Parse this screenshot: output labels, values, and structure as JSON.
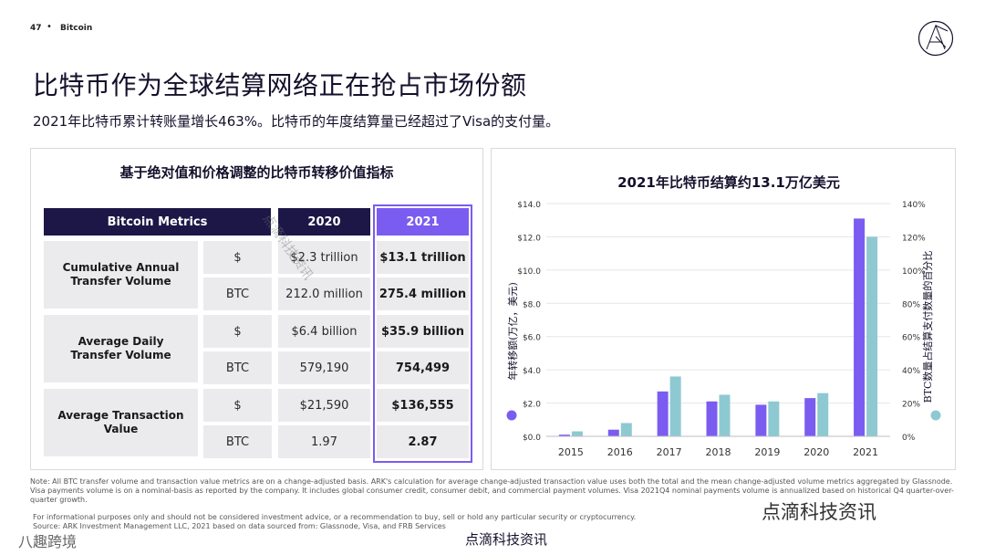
{
  "header": {
    "page_number": "47",
    "separator": "•",
    "section": "Bitcoin"
  },
  "title": "比特币作为全球结算网络正在抢占市场份额",
  "subtitle": "2021年比特币累计转账量增长463%。比特币的年度结算量已经超过了Visa的支付量。",
  "table": {
    "title": "基于绝对值和价格调整的比特币转移价值指标",
    "headers": [
      "Bitcoin Metrics",
      "2020",
      "2021"
    ],
    "groups": [
      {
        "metric": "Cumulative Annual Transfer Volume",
        "rows": [
          {
            "unit": "$",
            "v2020": "$2.3 trillion",
            "v2021": "$13.1 trillion"
          },
          {
            "unit": "BTC",
            "v2020": "212.0 million",
            "v2021": "275.4 million"
          }
        ]
      },
      {
        "metric": "Average Daily Transfer Volume",
        "rows": [
          {
            "unit": "$",
            "v2020": "$6.4 billion",
            "v2021": "$35.9 billion"
          },
          {
            "unit": "BTC",
            "v2020": "579,190",
            "v2021": "754,499"
          }
        ]
      },
      {
        "metric": "Average Transaction Value",
        "rows": [
          {
            "unit": "$",
            "v2020": "$21,590",
            "v2021": "$136,555"
          },
          {
            "unit": "BTC",
            "v2020": "1.97",
            "v2021": "2.87"
          }
        ]
      }
    ],
    "colors": {
      "header_dark": "#1c1747",
      "header_accent": "#7b5cf0",
      "cell_bg": "#ebebee"
    }
  },
  "chart_data": {
    "type": "bar",
    "title": "2021年比特币结算约13.1万亿美元",
    "categories": [
      "2015",
      "2016",
      "2017",
      "2018",
      "2019",
      "2020",
      "2021"
    ],
    "series": [
      {
        "axis": "left",
        "color": "#7b5cf0",
        "values": [
          0.1,
          0.4,
          2.7,
          2.1,
          1.9,
          2.3,
          13.1
        ]
      },
      {
        "axis": "right",
        "color": "#8ec9d2",
        "values": [
          3,
          8,
          36,
          25,
          21,
          26,
          120
        ]
      }
    ],
    "ylabel": "年转移额(万亿，美元)",
    "ylabel_right": "BTC数量占结算支付数量的百分比",
    "ylim": [
      0,
      14
    ],
    "ylim_right": [
      0,
      140
    ],
    "yticks": [
      "$0.0",
      "$2.0",
      "$4.0",
      "$6.0",
      "$8.0",
      "$10.0",
      "$12.0",
      "$14.0"
    ],
    "yticks_right": [
      "0%",
      "20%",
      "40%",
      "60%",
      "80%",
      "100%",
      "120%",
      "140%"
    ],
    "grid": true
  },
  "footnote": "Note: All BTC transfer volume and transaction value metrics are on a change-adjusted basis. ARK's calculation for average change-adjusted transaction value uses both the total and the mean change-adjusted volume metrics aggregated by Glassnode. Visa payments volume is on a nominal-basis as reported by the company. It includes global consumer credit, consumer debit, and commercial payment volumes. Visa 2021Q4 nominal payments volume is annualized based on historical Q4 quarter-over-quarter growth.",
  "disclaimer": "For informational purposes only and should not be considered investment advice, or a recommendation to buy, sell or hold any particular security or cryptocurrency.",
  "source": "Source: ARK Investment Management LLC, 2021 based on data sourced from: Glassnode, Visa, and FRB Services",
  "watermarks": {
    "right": "点滴科技资讯",
    "center": "点滴科技资讯",
    "left": "八趣跨境",
    "diagonal": "点滴科技资讯"
  }
}
